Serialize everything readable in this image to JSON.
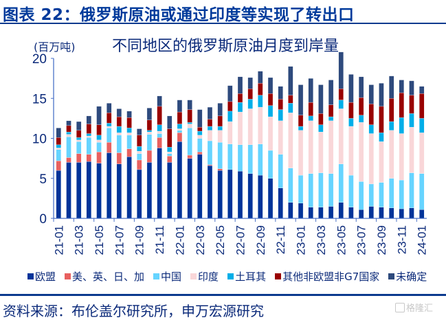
{
  "figure": {
    "title": "图表 22：俄罗斯原油或通过印度等实现了转出口",
    "source": "资料来源：布伦盖尔研究所，申万宏源研究",
    "watermark": "格隆汇"
  },
  "chart_data": {
    "type": "bar",
    "stacked": true,
    "title": "不同地区的俄罗斯原油月度到岸量",
    "ylabel": "(百万吨)",
    "xlabel": "",
    "ylim": [
      0,
      20
    ],
    "yticks": [
      "0",
      "5",
      "10",
      "15",
      "20"
    ],
    "ytick_values": [
      0,
      5,
      10,
      15,
      20
    ],
    "legend_position": "bottom",
    "grid": false,
    "categories": [
      "21-01",
      "21-02",
      "21-03",
      "21-04",
      "21-05",
      "21-06",
      "21-07",
      "21-08",
      "21-09",
      "21-10",
      "21-11",
      "21-12",
      "22-01",
      "22-02",
      "22-03",
      "22-04",
      "22-05",
      "22-06",
      "22-07",
      "22-08",
      "22-09",
      "22-10",
      "22-11",
      "22-12",
      "23-01",
      "23-02",
      "23-03",
      "23-04",
      "23-05",
      "23-06",
      "23-07",
      "23-08",
      "23-09",
      "23-10",
      "23-11",
      "23-12",
      "24-01"
    ],
    "xtick_labels": [
      "21-01",
      "21-03",
      "21-05",
      "21-07",
      "21-09",
      "21-11",
      "22-01",
      "22-03",
      "22-05",
      "22-07",
      "22-09",
      "22-11",
      "23-01",
      "23-03",
      "23-05",
      "23-07",
      "23-09",
      "23-11",
      "24-01"
    ],
    "series": [
      {
        "name": "欧盟",
        "color": "#003399",
        "values": [
          6.0,
          7.0,
          7.0,
          7.1,
          6.9,
          8.2,
          6.8,
          7.7,
          6.1,
          7.0,
          8.8,
          7.0,
          9.6,
          7.5,
          8.0,
          6.6,
          6.0,
          6.1,
          5.9,
          5.6,
          5.4,
          5.0,
          3.8,
          2.0,
          1.9,
          1.4,
          1.4,
          1.5,
          2.0,
          1.4,
          1.1,
          1.5,
          1.4,
          1.3,
          1.2,
          1.3,
          1.1
        ]
      },
      {
        "name": "美、英、日、加",
        "color": "#e8605f",
        "values": [
          1.2,
          0.6,
          1.1,
          0.9,
          1.4,
          1.3,
          1.4,
          1.0,
          1.2,
          1.5,
          1.3,
          0.8,
          1.1,
          0.4,
          0.3,
          0.1,
          0.2,
          0.0,
          0.0,
          0.0,
          0.0,
          0.0,
          0.0,
          0.0,
          0.0,
          0.0,
          0.0,
          0.0,
          0.0,
          0.0,
          0.0,
          0.0,
          0.0,
          0.0,
          0.0,
          0.0,
          0.0
        ]
      },
      {
        "name": "中国",
        "color": "#66d4ff",
        "values": [
          1.4,
          2.6,
          1.5,
          2.1,
          1.2,
          1.8,
          2.2,
          1.7,
          0.8,
          2.0,
          0.5,
          0.3,
          0.3,
          3.4,
          1.7,
          3.0,
          3.3,
          3.2,
          3.3,
          3.6,
          3.9,
          3.5,
          4.2,
          4.3,
          3.5,
          4.2,
          4.3,
          4.1,
          4.8,
          4.0,
          3.5,
          2.8,
          3.1,
          3.7,
          3.6,
          4.4,
          4.5
        ]
      },
      {
        "name": "印度",
        "color": "#f9d6d8",
        "values": [
          0.2,
          0.3,
          0.2,
          0.2,
          0.3,
          0.2,
          0.3,
          0.3,
          0.3,
          0.3,
          0.3,
          0.2,
          0.2,
          0.5,
          0.4,
          1.3,
          1.5,
          2.8,
          4.1,
          4.5,
          4.6,
          4.2,
          4.2,
          6.9,
          5.6,
          6.6,
          5.1,
          6.6,
          6.9,
          6.1,
          7.4,
          6.3,
          5.1,
          6.0,
          5.8,
          5.7,
          5.1
        ]
      },
      {
        "name": "土耳其",
        "color": "#00aee8",
        "values": [
          0.4,
          0.3,
          0.3,
          0.3,
          0.6,
          0.4,
          0.8,
          0.6,
          0.6,
          0.2,
          0.8,
          0.6,
          0.6,
          0.2,
          0.5,
          0.5,
          0.5,
          1.3,
          1.2,
          1.2,
          1.5,
          1.4,
          1.4,
          1.2,
          0.5,
          0.6,
          0.9,
          0.5,
          1.1,
          1.0,
          0.9,
          1.1,
          1.1,
          1.1,
          2.0,
          1.7,
          1.8
        ]
      },
      {
        "name": "其他非欧盟非G7国家",
        "color": "#990000",
        "values": [
          0.9,
          0.8,
          0.9,
          1.2,
          1.3,
          1.3,
          1.2,
          1.3,
          1.4,
          1.3,
          2.3,
          2.3,
          1.5,
          1.6,
          0.5,
          0.9,
          1.3,
          1.2,
          1.1,
          1.3,
          1.5,
          1.5,
          1.3,
          1.0,
          1.4,
          1.7,
          1.4,
          1.5,
          1.4,
          2.0,
          2.2,
          2.6,
          3.3,
          2.9,
          3.1,
          2.3,
          3.1
        ]
      },
      {
        "name": "未确定",
        "color": "#2e4a7d",
        "values": [
          1.2,
          0.6,
          1.1,
          1.0,
          2.3,
          1.2,
          1.0,
          0.8,
          0.8,
          1.5,
          1.3,
          1.6,
          1.5,
          1.2,
          2.2,
          1.5,
          1.6,
          2.0,
          2.1,
          1.4,
          1.5,
          2.0,
          1.6,
          3.6,
          3.8,
          3.0,
          3.6,
          3.1,
          4.6,
          3.5,
          2.6,
          2.4,
          2.9,
          2.8,
          1.6,
          1.8,
          0.9
        ]
      }
    ]
  }
}
